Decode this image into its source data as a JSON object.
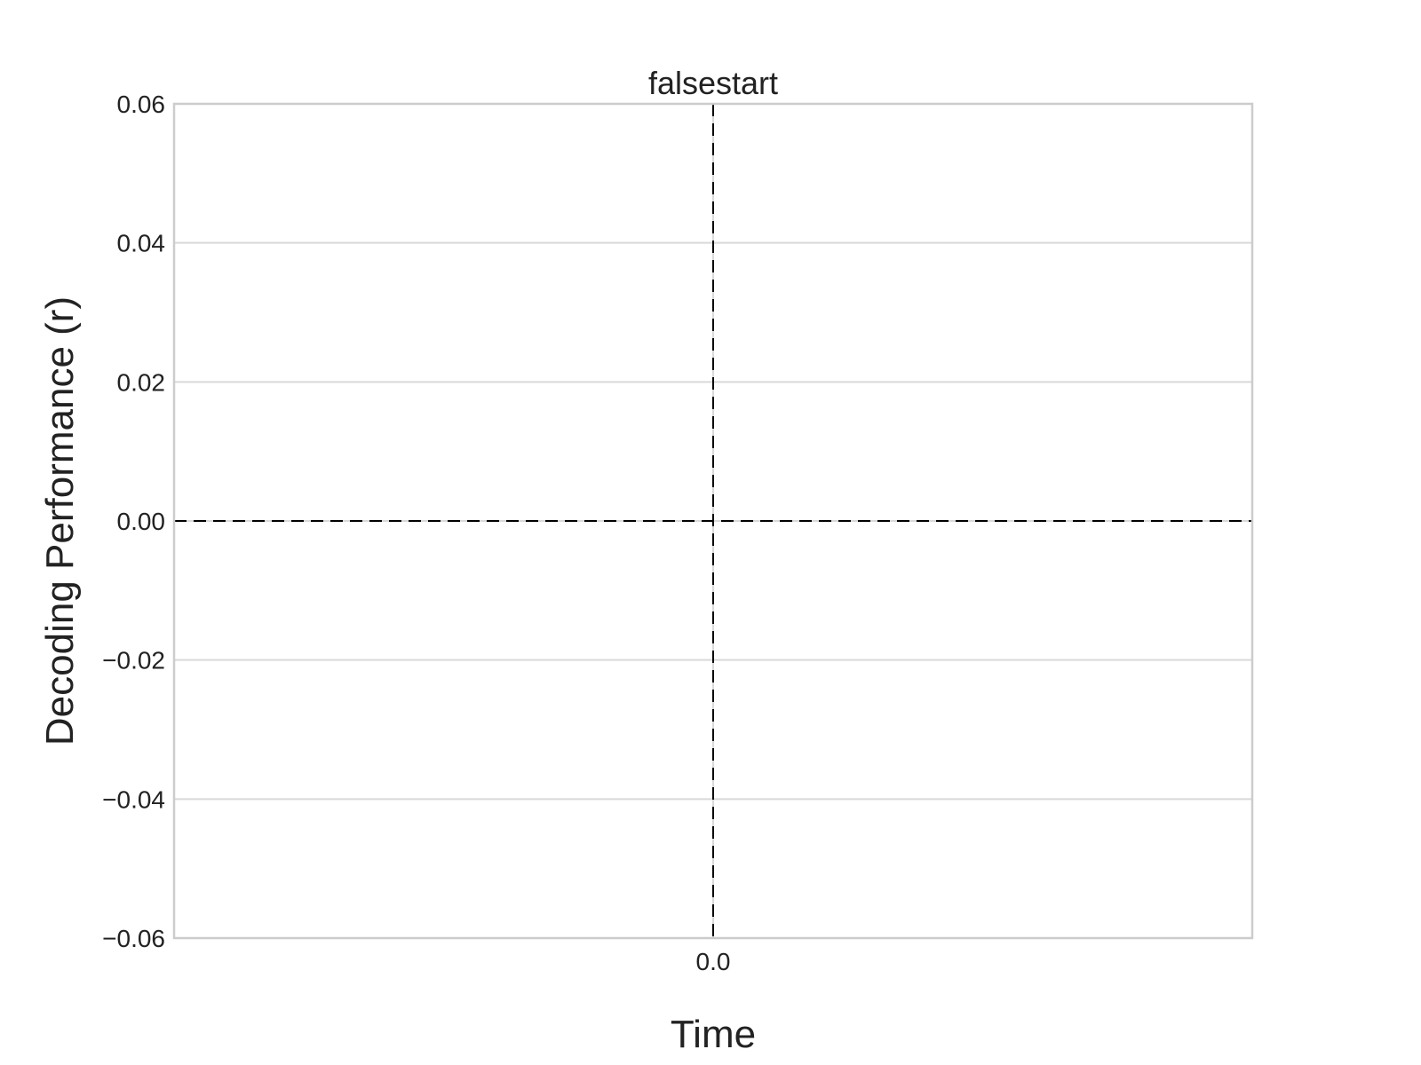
{
  "chart_data": {
    "type": "line",
    "title": "falsestart",
    "xlabel": "Time",
    "ylabel": "Decoding Performance (r)",
    "x_ticks": [
      {
        "value": 0.0,
        "label": "0.0"
      }
    ],
    "y_ticks": [
      {
        "value": 0.06,
        "label": "0.06"
      },
      {
        "value": 0.04,
        "label": "0.04"
      },
      {
        "value": 0.02,
        "label": "0.02"
      },
      {
        "value": 0.0,
        "label": "0.00"
      },
      {
        "value": -0.02,
        "label": "−0.02"
      },
      {
        "value": -0.04,
        "label": "−0.04"
      },
      {
        "value": -0.06,
        "label": "−0.06"
      }
    ],
    "xlim": [
      -1,
      1
    ],
    "ylim": [
      -0.06,
      0.06
    ],
    "grid": true,
    "series": [],
    "reference_lines": [
      {
        "orientation": "horizontal",
        "value": 0.0,
        "style": "dashed",
        "color": "#000000"
      },
      {
        "orientation": "vertical",
        "value": 0.0,
        "style": "dashed",
        "color": "#000000"
      }
    ],
    "colors": {
      "grid": "#d9d9d9",
      "frame": "#cccccc",
      "text": "#222222"
    }
  }
}
